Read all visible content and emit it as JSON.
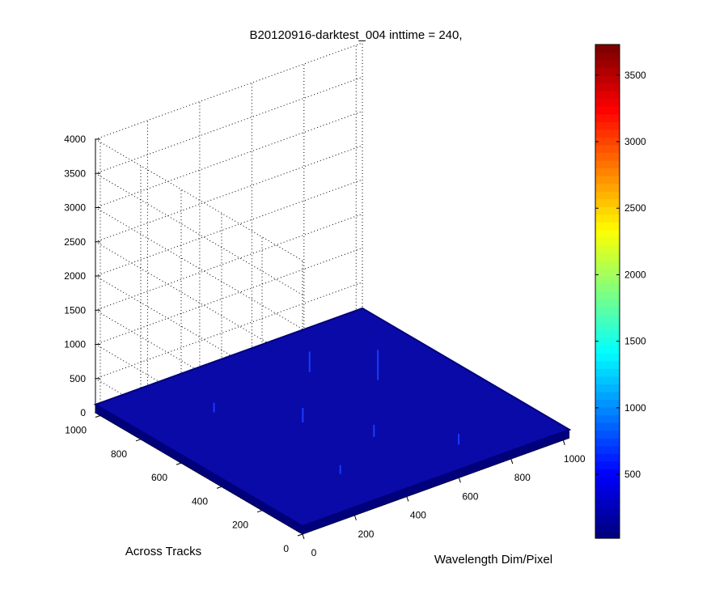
{
  "chart_data": {
    "type": "surface3d",
    "title": "B20120916-darktest_004 inttime = 240,",
    "xlabel": "Wavelength Dim/Pixel",
    "ylabel": "Across Tracks",
    "zlabel": "",
    "xlim": [
      0,
      1024
    ],
    "ylim": [
      0,
      1024
    ],
    "zlim": [
      0,
      4000
    ],
    "x_ticks": [
      "0",
      "200",
      "400",
      "600",
      "800",
      "1000"
    ],
    "y_ticks": [
      "0",
      "200",
      "400",
      "600",
      "800",
      "1000"
    ],
    "z_ticks": [
      "0",
      "500",
      "1000",
      "1500",
      "2000",
      "2500",
      "3000",
      "3500",
      "4000"
    ],
    "surface_baseline_value": 120,
    "spikes": [
      {
        "x": 770,
        "y": 620,
        "z": 560
      },
      {
        "x": 640,
        "y": 790,
        "z": 420
      },
      {
        "x": 420,
        "y": 540,
        "z": 330
      },
      {
        "x": 530,
        "y": 330,
        "z": 300
      },
      {
        "x": 700,
        "y": 130,
        "z": 280
      },
      {
        "x": 300,
        "y": 200,
        "z": 250
      },
      {
        "x": 250,
        "y": 760,
        "z": 260
      }
    ],
    "colorbar": {
      "colormap": "jet",
      "range": [
        20,
        3730
      ],
      "ticks": [
        "500",
        "1000",
        "1500",
        "2000",
        "2500",
        "3000",
        "3500"
      ]
    },
    "grid": true,
    "colors": {
      "surface": "#0a0aa8",
      "surface_edge": "#00007a",
      "spike": "#1a3aff"
    }
  }
}
